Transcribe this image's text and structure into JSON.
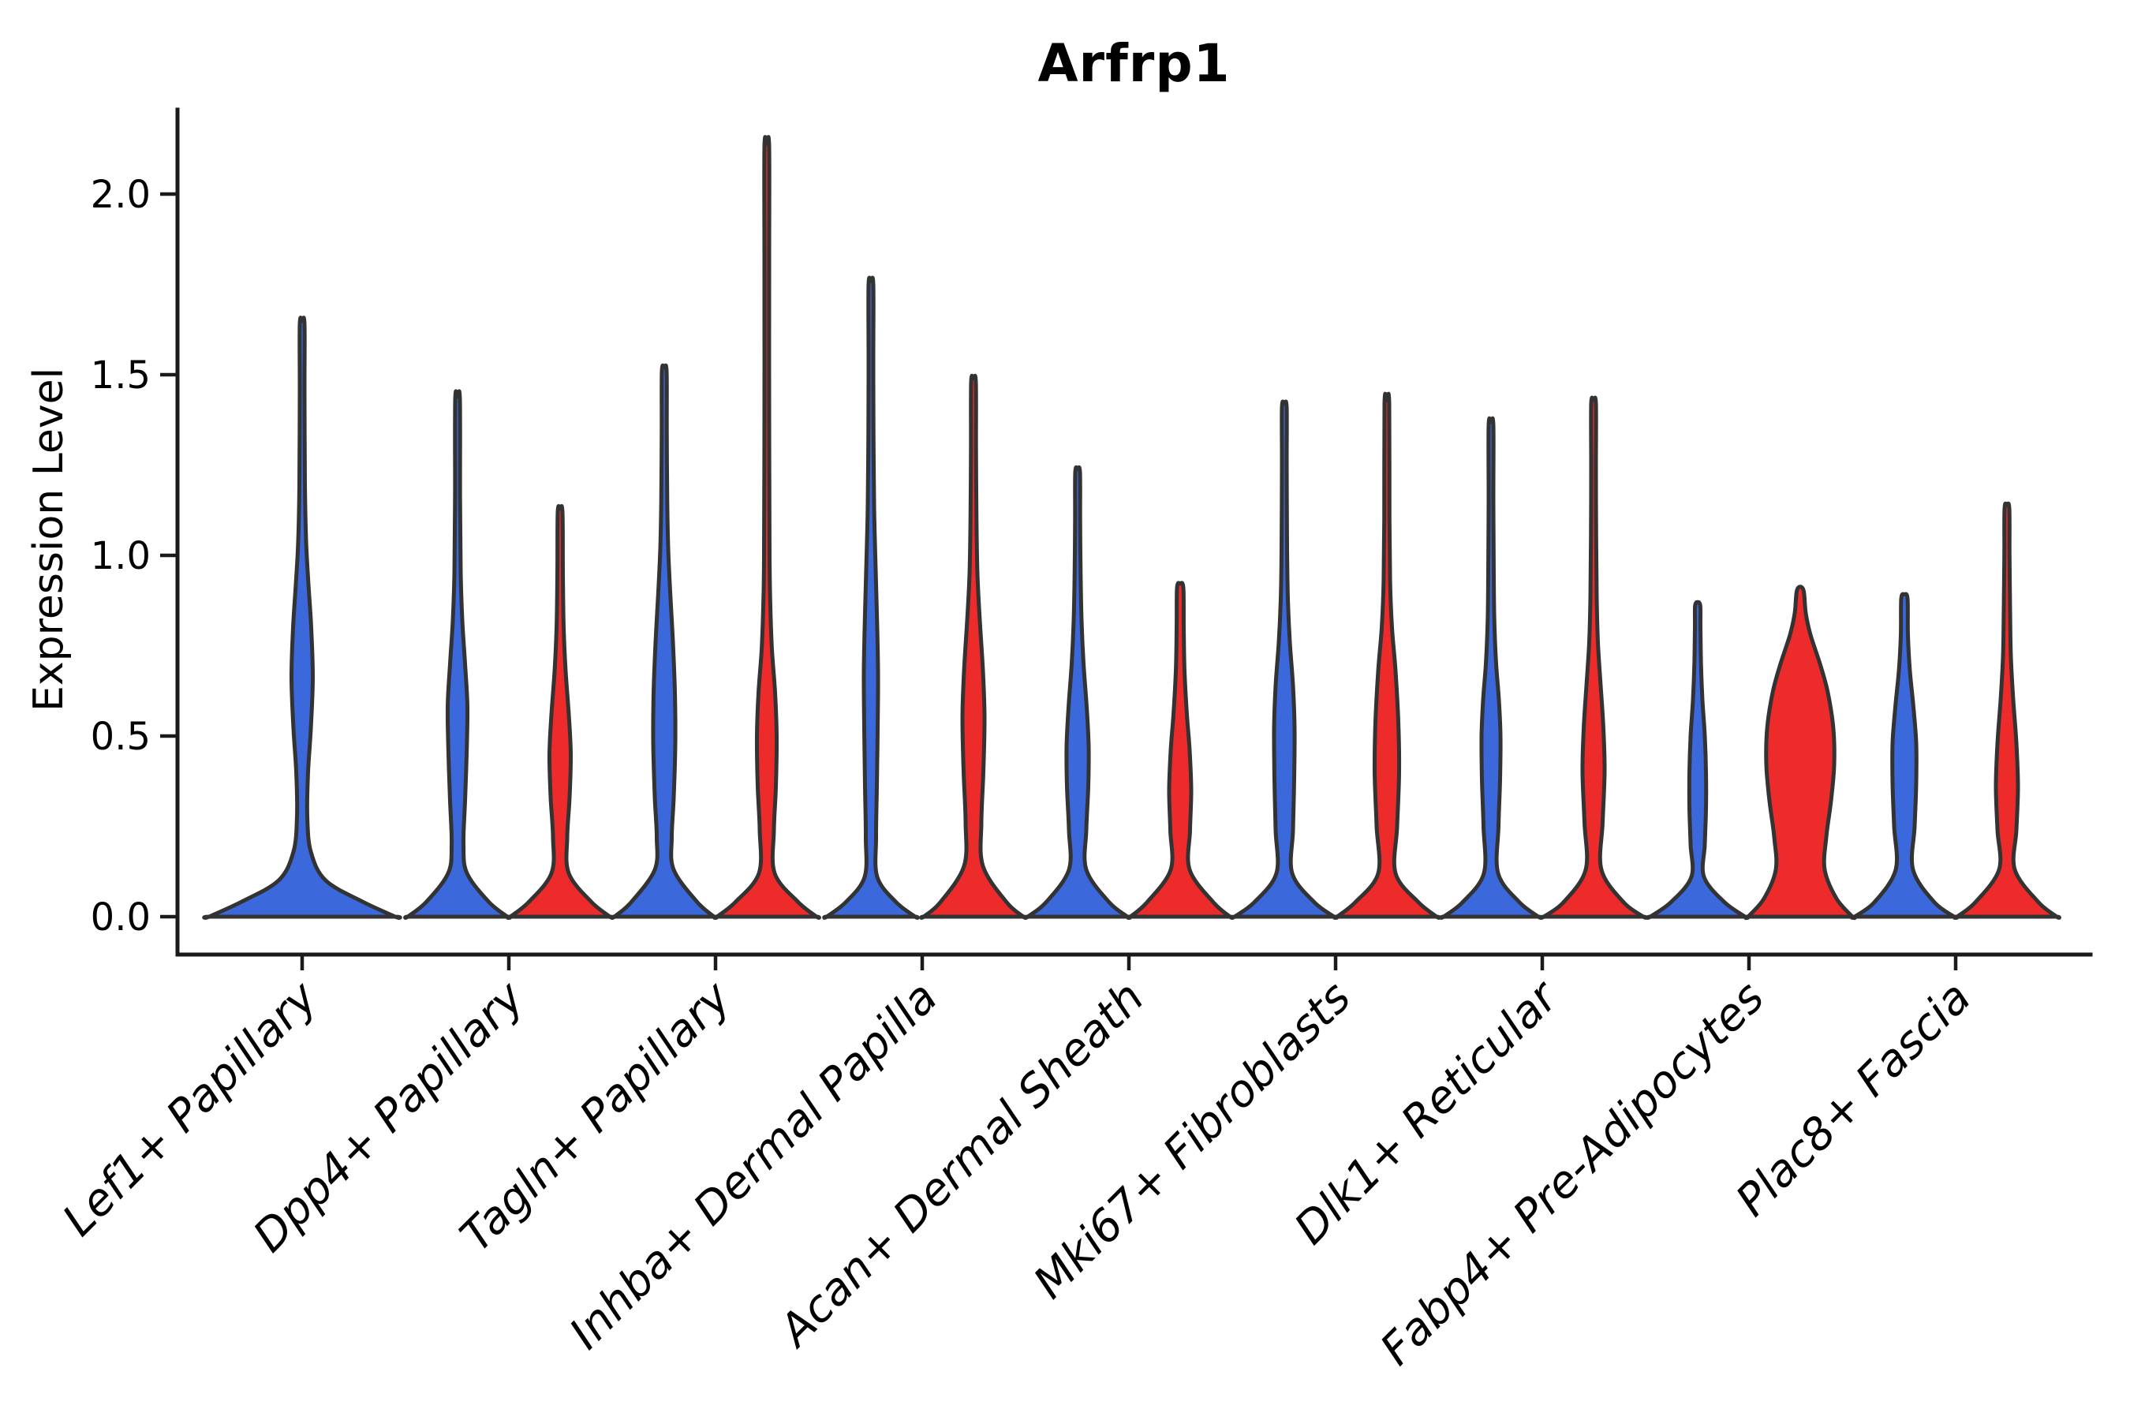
{
  "chart_data": {
    "type": "violin",
    "title": "Arfrp1",
    "ylabel": "Expression Level",
    "grid": false,
    "legend": "none",
    "ylim": [
      -0.105,
      2.23
    ],
    "ytick_values": [
      0.0,
      0.5,
      1.0,
      1.5,
      2.0
    ],
    "ytick_labels": [
      "0.0",
      "0.5",
      "1.0",
      "1.5",
      "2.0"
    ],
    "categories": [
      "Lef1+ Papillary",
      "Dpp4+ Papillary",
      "Tagln+ Papillary",
      "Inhba+ Dermal Papilla",
      "Acan+ Dermal Sheath",
      "Mki67+ Fibroblasts",
      "Dlk1+ Reticular",
      "Fabp4+ Pre-Adipocytes",
      "Plac8+ Fascia"
    ],
    "colors": {
      "blue": "#3B68DA",
      "red": "#EE2B2B",
      "outline": "#333333",
      "axis": "#1a1a1a",
      "background": "#ffffff"
    },
    "violins": [
      {
        "category_index": 0,
        "position": "center",
        "color": "blue",
        "max_value": 1.64,
        "profile": [
          [
            0,
            118
          ],
          [
            0.04,
            78
          ],
          [
            0.1,
            30
          ],
          [
            0.18,
            11
          ],
          [
            0.28,
            6.5
          ],
          [
            0.4,
            7.5
          ],
          [
            0.52,
            11
          ],
          [
            0.66,
            13.5
          ],
          [
            0.8,
            11.5
          ],
          [
            0.92,
            8
          ],
          [
            1.04,
            5
          ],
          [
            1.2,
            3.5
          ],
          [
            1.45,
            3
          ],
          [
            1.64,
            3
          ]
        ]
      },
      {
        "category_index": 1,
        "position": "left",
        "color": "blue",
        "max_value": 1.43,
        "profile": [
          [
            0,
            63
          ],
          [
            0.04,
            40
          ],
          [
            0.12,
            12
          ],
          [
            0.2,
            7.5
          ],
          [
            0.32,
            9.5
          ],
          [
            0.45,
            11.5
          ],
          [
            0.58,
            12.5
          ],
          [
            0.7,
            9.5
          ],
          [
            0.82,
            6
          ],
          [
            0.95,
            4
          ],
          [
            1.15,
            3.2
          ],
          [
            1.43,
            3
          ]
        ]
      },
      {
        "category_index": 1,
        "position": "right",
        "color": "red",
        "max_value": 1.12,
        "profile": [
          [
            0,
            63
          ],
          [
            0.04,
            40
          ],
          [
            0.12,
            11
          ],
          [
            0.22,
            9
          ],
          [
            0.33,
            12
          ],
          [
            0.45,
            13.5
          ],
          [
            0.56,
            11
          ],
          [
            0.68,
            7
          ],
          [
            0.8,
            4.5
          ],
          [
            0.95,
            3.5
          ],
          [
            1.12,
            3
          ]
        ]
      },
      {
        "category_index": 2,
        "position": "left",
        "color": "blue",
        "max_value": 1.51,
        "profile": [
          [
            0,
            63
          ],
          [
            0.04,
            42
          ],
          [
            0.13,
            12
          ],
          [
            0.22,
            9.5
          ],
          [
            0.33,
            12
          ],
          [
            0.48,
            14
          ],
          [
            0.62,
            13.5
          ],
          [
            0.76,
            11
          ],
          [
            0.9,
            7.5
          ],
          [
            1.02,
            5
          ],
          [
            1.15,
            3.8
          ],
          [
            1.35,
            3.2
          ],
          [
            1.51,
            3
          ]
        ]
      },
      {
        "category_index": 2,
        "position": "right",
        "color": "red",
        "max_value": 2.13,
        "profile": [
          [
            0,
            63
          ],
          [
            0.04,
            40
          ],
          [
            0.12,
            10
          ],
          [
            0.24,
            9
          ],
          [
            0.36,
            11.5
          ],
          [
            0.5,
            12.5
          ],
          [
            0.62,
            10.5
          ],
          [
            0.74,
            6.5
          ],
          [
            0.86,
            4.5
          ],
          [
            1.0,
            3.5
          ],
          [
            1.4,
            3
          ],
          [
            1.8,
            3
          ],
          [
            2.13,
            3
          ]
        ]
      },
      {
        "category_index": 3,
        "position": "left",
        "color": "blue",
        "max_value": 1.75,
        "profile": [
          [
            0,
            56
          ],
          [
            0.04,
            32
          ],
          [
            0.11,
            8
          ],
          [
            0.22,
            6.5
          ],
          [
            0.36,
            7.5
          ],
          [
            0.52,
            8.5
          ],
          [
            0.68,
            9
          ],
          [
            0.84,
            7.5
          ],
          [
            1.0,
            5.5
          ],
          [
            1.14,
            4
          ],
          [
            1.35,
            3.2
          ],
          [
            1.55,
            3
          ],
          [
            1.75,
            3
          ]
        ]
      },
      {
        "category_index": 3,
        "position": "right",
        "color": "red",
        "max_value": 1.48,
        "profile": [
          [
            0,
            63
          ],
          [
            0.04,
            42
          ],
          [
            0.14,
            12
          ],
          [
            0.26,
            10
          ],
          [
            0.4,
            12.5
          ],
          [
            0.55,
            14
          ],
          [
            0.68,
            12
          ],
          [
            0.82,
            8
          ],
          [
            0.95,
            5
          ],
          [
            1.1,
            3.8
          ],
          [
            1.3,
            3.2
          ],
          [
            1.48,
            3
          ]
        ]
      },
      {
        "category_index": 4,
        "position": "left",
        "color": "blue",
        "max_value": 1.23,
        "profile": [
          [
            0,
            63
          ],
          [
            0.04,
            40
          ],
          [
            0.13,
            11
          ],
          [
            0.24,
            11
          ],
          [
            0.36,
            13.5
          ],
          [
            0.47,
            14
          ],
          [
            0.58,
            11.5
          ],
          [
            0.7,
            7.5
          ],
          [
            0.82,
            5
          ],
          [
            0.95,
            3.8
          ],
          [
            1.1,
            3.2
          ],
          [
            1.23,
            3
          ]
        ]
      },
      {
        "category_index": 4,
        "position": "right",
        "color": "red",
        "max_value": 0.91,
        "profile": [
          [
            0,
            63
          ],
          [
            0.04,
            42
          ],
          [
            0.13,
            12
          ],
          [
            0.24,
            12.5
          ],
          [
            0.35,
            14
          ],
          [
            0.46,
            12
          ],
          [
            0.56,
            8.5
          ],
          [
            0.68,
            5.5
          ],
          [
            0.8,
            4.5
          ],
          [
            0.91,
            4
          ]
        ]
      },
      {
        "category_index": 5,
        "position": "left",
        "color": "blue",
        "max_value": 1.41,
        "profile": [
          [
            0,
            63
          ],
          [
            0.04,
            38
          ],
          [
            0.12,
            10
          ],
          [
            0.24,
            11
          ],
          [
            0.38,
            12.5
          ],
          [
            0.52,
            13
          ],
          [
            0.64,
            11
          ],
          [
            0.76,
            7
          ],
          [
            0.88,
            4.5
          ],
          [
            1.02,
            3.5
          ],
          [
            1.25,
            3
          ],
          [
            1.41,
            3
          ]
        ]
      },
      {
        "category_index": 5,
        "position": "right",
        "color": "red",
        "max_value": 1.42,
        "profile": [
          [
            0,
            63
          ],
          [
            0.04,
            40
          ],
          [
            0.12,
            11
          ],
          [
            0.25,
            13
          ],
          [
            0.4,
            15.5
          ],
          [
            0.54,
            14.5
          ],
          [
            0.68,
            11
          ],
          [
            0.8,
            6.5
          ],
          [
            0.92,
            4.2
          ],
          [
            1.1,
            3.3
          ],
          [
            1.42,
            3
          ]
        ]
      },
      {
        "category_index": 6,
        "position": "left",
        "color": "blue",
        "max_value": 1.36,
        "profile": [
          [
            0,
            60
          ],
          [
            0.04,
            36
          ],
          [
            0.12,
            9
          ],
          [
            0.25,
            9.5
          ],
          [
            0.38,
            11.5
          ],
          [
            0.5,
            12
          ],
          [
            0.6,
            10
          ],
          [
            0.7,
            6.5
          ],
          [
            0.82,
            4.2
          ],
          [
            0.95,
            3.5
          ],
          [
            1.15,
            3
          ],
          [
            1.36,
            3
          ]
        ]
      },
      {
        "category_index": 6,
        "position": "right",
        "color": "red",
        "max_value": 1.42,
        "profile": [
          [
            0,
            63
          ],
          [
            0.04,
            38
          ],
          [
            0.13,
            10
          ],
          [
            0.26,
            11.5
          ],
          [
            0.4,
            14
          ],
          [
            0.52,
            12.5
          ],
          [
            0.64,
            9
          ],
          [
            0.76,
            5.5
          ],
          [
            0.88,
            4
          ],
          [
            1.05,
            3.3
          ],
          [
            1.25,
            3
          ],
          [
            1.42,
            3
          ]
        ]
      },
      {
        "category_index": 7,
        "position": "left",
        "color": "blue",
        "max_value": 0.86,
        "profile": [
          [
            0,
            60
          ],
          [
            0.04,
            34
          ],
          [
            0.11,
            8
          ],
          [
            0.2,
            9
          ],
          [
            0.3,
            10.5
          ],
          [
            0.4,
            10.5
          ],
          [
            0.5,
            9
          ],
          [
            0.6,
            6
          ],
          [
            0.7,
            4.2
          ],
          [
            0.8,
            3.5
          ],
          [
            0.86,
            3.3
          ]
        ]
      },
      {
        "category_index": 7,
        "position": "right",
        "color": "red",
        "max_value": 0.9,
        "profile": [
          [
            0,
            66
          ],
          [
            0.05,
            46
          ],
          [
            0.13,
            31
          ],
          [
            0.22,
            33
          ],
          [
            0.32,
            39
          ],
          [
            0.42,
            43
          ],
          [
            0.52,
            42
          ],
          [
            0.62,
            35
          ],
          [
            0.7,
            25
          ],
          [
            0.78,
            13
          ],
          [
            0.84,
            7
          ],
          [
            0.9,
            4.5
          ]
        ]
      },
      {
        "category_index": 8,
        "position": "left",
        "color": "blue",
        "max_value": 0.88,
        "profile": [
          [
            0,
            63
          ],
          [
            0.04,
            38
          ],
          [
            0.13,
            11
          ],
          [
            0.25,
            13
          ],
          [
            0.37,
            15
          ],
          [
            0.48,
            15
          ],
          [
            0.58,
            11.5
          ],
          [
            0.68,
            7
          ],
          [
            0.78,
            4.5
          ],
          [
            0.88,
            4
          ]
        ]
      },
      {
        "category_index": 8,
        "position": "right",
        "color": "red",
        "max_value": 1.13,
        "profile": [
          [
            0,
            63
          ],
          [
            0.04,
            40
          ],
          [
            0.13,
            10
          ],
          [
            0.24,
            12
          ],
          [
            0.36,
            14
          ],
          [
            0.48,
            12
          ],
          [
            0.6,
            8
          ],
          [
            0.72,
            5
          ],
          [
            0.85,
            4
          ],
          [
            1.0,
            3.3
          ],
          [
            1.13,
            3
          ]
        ]
      }
    ]
  }
}
